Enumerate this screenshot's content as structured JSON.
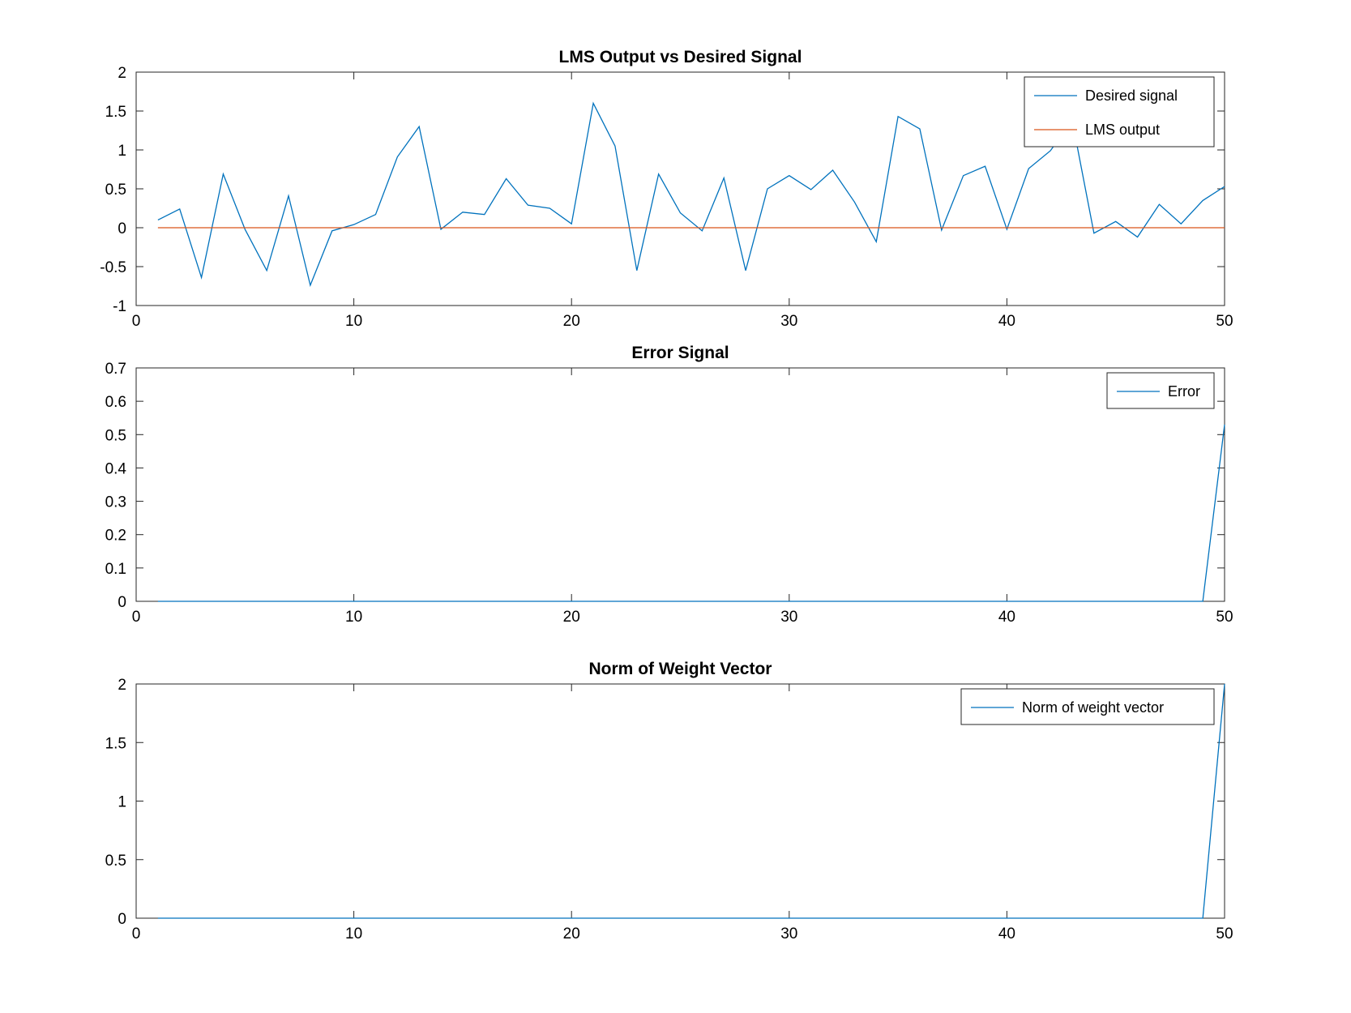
{
  "chart_data": [
    {
      "type": "line",
      "title": "LMS Output vs Desired Signal",
      "xlabel": "",
      "ylabel": "",
      "xlim": [
        0,
        50
      ],
      "ylim": [
        -1,
        2
      ],
      "xticks": [
        "0",
        "10",
        "20",
        "30",
        "40",
        "50"
      ],
      "yticks": [
        "-1",
        "-0.5",
        "0",
        "0.5",
        "1",
        "1.5",
        "2"
      ],
      "grid": false,
      "legend": "top-right",
      "x": [
        1,
        2,
        3,
        4,
        5,
        6,
        7,
        8,
        9,
        10,
        11,
        12,
        13,
        14,
        15,
        16,
        17,
        18,
        19,
        20,
        21,
        22,
        23,
        24,
        25,
        26,
        27,
        28,
        29,
        30,
        31,
        32,
        33,
        34,
        35,
        36,
        37,
        38,
        39,
        40,
        41,
        42,
        43,
        44,
        45,
        46,
        47,
        48,
        49,
        50
      ],
      "series": [
        {
          "name": "Desired signal",
          "color": "#0072bd",
          "values": [
            0.1,
            0.24,
            -0.64,
            0.69,
            -0.02,
            -0.55,
            0.41,
            -0.74,
            -0.04,
            0.04,
            0.17,
            0.91,
            1.3,
            -0.02,
            0.2,
            0.17,
            0.63,
            0.29,
            0.25,
            0.05,
            1.6,
            1.05,
            -0.55,
            0.69,
            0.19,
            -0.04,
            0.64,
            -0.55,
            0.5,
            0.67,
            0.49,
            0.74,
            0.33,
            -0.18,
            1.43,
            1.27,
            -0.03,
            0.67,
            0.79,
            -0.02,
            0.76,
            0.99,
            1.38,
            -0.07,
            0.08,
            -0.12,
            0.3,
            0.05,
            0.35,
            0.53
          ]
        },
        {
          "name": "LMS output",
          "color": "#d95319",
          "values": [
            0,
            0,
            0,
            0,
            0,
            0,
            0,
            0,
            0,
            0,
            0,
            0,
            0,
            0,
            0,
            0,
            0,
            0,
            0,
            0,
            0,
            0,
            0,
            0,
            0,
            0,
            0,
            0,
            0,
            0,
            0,
            0,
            0,
            0,
            0,
            0,
            0,
            0,
            0,
            0,
            0,
            0,
            0,
            0,
            0,
            0,
            0,
            0,
            0,
            0
          ]
        }
      ]
    },
    {
      "type": "line",
      "title": "Error Signal",
      "xlabel": "",
      "ylabel": "",
      "xlim": [
        0,
        50
      ],
      "ylim": [
        0,
        0.7
      ],
      "xticks": [
        "0",
        "10",
        "20",
        "30",
        "40",
        "50"
      ],
      "yticks": [
        "0",
        "0.1",
        "0.2",
        "0.3",
        "0.4",
        "0.5",
        "0.6",
        "0.7"
      ],
      "grid": false,
      "legend": "top-right",
      "x": [
        1,
        2,
        3,
        4,
        5,
        6,
        7,
        8,
        9,
        10,
        11,
        12,
        13,
        14,
        15,
        16,
        17,
        18,
        19,
        20,
        21,
        22,
        23,
        24,
        25,
        26,
        27,
        28,
        29,
        30,
        31,
        32,
        33,
        34,
        35,
        36,
        37,
        38,
        39,
        40,
        41,
        42,
        43,
        44,
        45,
        46,
        47,
        48,
        49,
        50
      ],
      "series": [
        {
          "name": "Error",
          "color": "#0072bd",
          "values": [
            0,
            0,
            0,
            0,
            0,
            0,
            0,
            0,
            0,
            0,
            0,
            0,
            0,
            0,
            0,
            0,
            0,
            0,
            0,
            0,
            0,
            0,
            0,
            0,
            0,
            0,
            0,
            0,
            0,
            0,
            0,
            0,
            0,
            0,
            0,
            0,
            0,
            0,
            0,
            0,
            0,
            0,
            0,
            0,
            0,
            0,
            0,
            0,
            0,
            0.53
          ]
        }
      ]
    },
    {
      "type": "line",
      "title": "Norm of Weight Vector",
      "xlabel": "",
      "ylabel": "",
      "xlim": [
        0,
        50
      ],
      "ylim": [
        0,
        2
      ],
      "xticks": [
        "0",
        "10",
        "20",
        "30",
        "40",
        "50"
      ],
      "yticks": [
        "0",
        "0.5",
        "1",
        "1.5",
        "2"
      ],
      "grid": false,
      "legend": "top-right",
      "x": [
        1,
        2,
        3,
        4,
        5,
        6,
        7,
        8,
        9,
        10,
        11,
        12,
        13,
        14,
        15,
        16,
        17,
        18,
        19,
        20,
        21,
        22,
        23,
        24,
        25,
        26,
        27,
        28,
        29,
        30,
        31,
        32,
        33,
        34,
        35,
        36,
        37,
        38,
        39,
        40,
        41,
        42,
        43,
        44,
        45,
        46,
        47,
        48,
        49,
        50
      ],
      "series": [
        {
          "name": "Norm of weight vector",
          "color": "#0072bd",
          "values": [
            0,
            0,
            0,
            0,
            0,
            0,
            0,
            0,
            0,
            0,
            0,
            0,
            0,
            0,
            0,
            0,
            0,
            0,
            0,
            0,
            0,
            0,
            0,
            0,
            0,
            0,
            0,
            0,
            0,
            0,
            0,
            0,
            0,
            0,
            0,
            0,
            0,
            0,
            0,
            0,
            0,
            0,
            0,
            0,
            0,
            0,
            0,
            0,
            0,
            2.0
          ]
        }
      ]
    }
  ]
}
